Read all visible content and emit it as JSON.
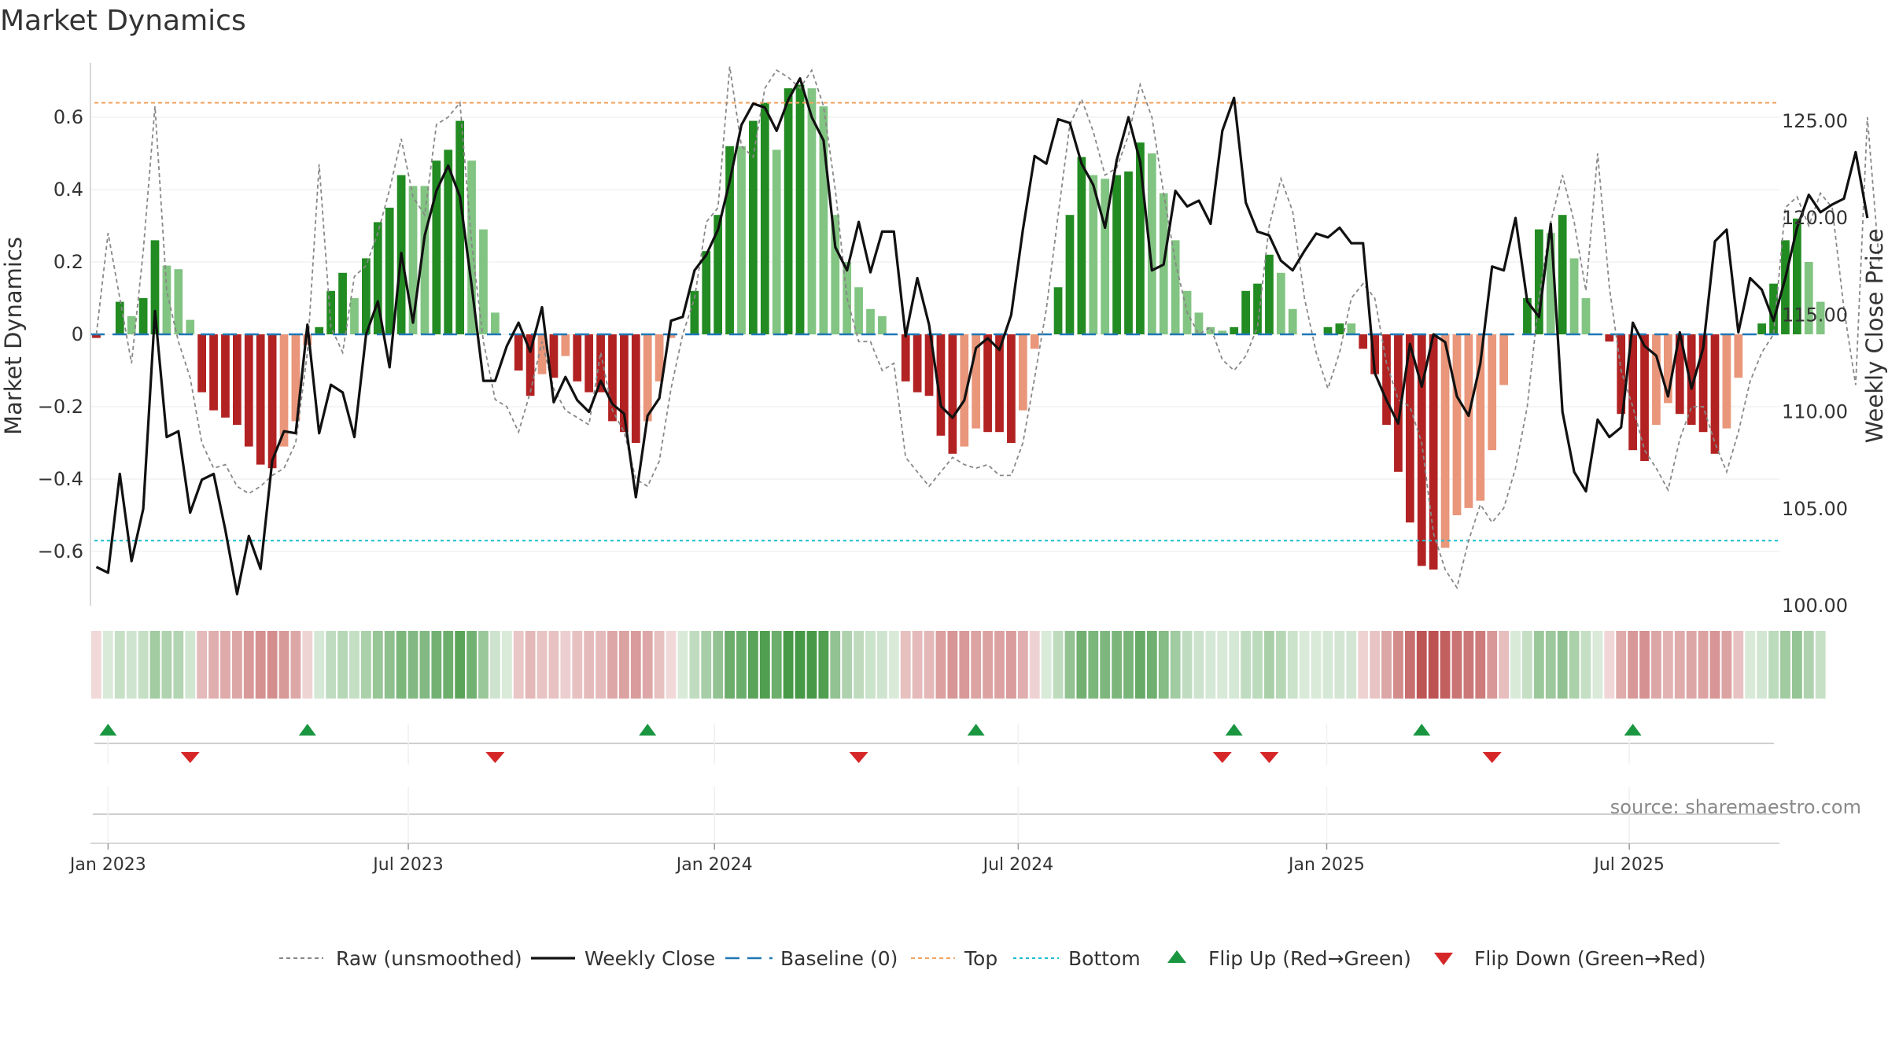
{
  "title": "Market Dynamics",
  "source": "source: sharemaestro.com",
  "colors": {
    "green_dark": "#228b22",
    "green_light": "#82c482",
    "red_dark": "#b22222",
    "red_light": "#e9967a",
    "raw_line": "#888888",
    "close_line": "#111111",
    "baseline": "#1f77b4",
    "top_line": "#f4a460",
    "bottom_line": "#17becf",
    "flip_up": "#1a9641",
    "flip_down": "#d62728"
  },
  "legend": [
    {
      "label": "Raw (unsmoothed)",
      "kind": "dashed-gray"
    },
    {
      "label": "Weekly Close",
      "kind": "solid-black"
    },
    {
      "label": "Baseline (0)",
      "kind": "dashed-blue"
    },
    {
      "label": "Top",
      "kind": "dotted-orange"
    },
    {
      "label": "Bottom",
      "kind": "dotted-cyan"
    },
    {
      "label": "Flip Up (Red→Green)",
      "kind": "triangle-up"
    },
    {
      "label": "Flip Down (Green→Red)",
      "kind": "triangle-down"
    }
  ],
  "chart_data": {
    "type": "bar",
    "title": "Market Dynamics",
    "ylabel_left": "Market Dynamics",
    "ylabel_right": "Weekly Close Price",
    "ylim_left": [
      -0.75,
      0.75
    ],
    "ylim_right": [
      100,
      128
    ],
    "yticks_left": [
      {
        "value": 0.6,
        "label": "0.6"
      },
      {
        "value": 0.4,
        "label": "0.4"
      },
      {
        "value": 0.2,
        "label": "0.2"
      },
      {
        "value": 0,
        "label": "0"
      },
      {
        "value": -0.2,
        "label": "−0.2"
      },
      {
        "value": -0.4,
        "label": "−0.4"
      },
      {
        "value": -0.6,
        "label": "−0.6"
      }
    ],
    "yticks_right": [
      {
        "value": 125,
        "label": "125.00"
      },
      {
        "value": 120,
        "label": "120.00"
      },
      {
        "value": 115,
        "label": "115.00"
      },
      {
        "value": 110,
        "label": "110.00"
      },
      {
        "value": 105,
        "label": "105.00"
      },
      {
        "value": 100,
        "label": "100.00"
      }
    ],
    "xticks": [
      {
        "week": 1,
        "label": "Jan 2023"
      },
      {
        "week": 26.6,
        "label": "Jul 2023"
      },
      {
        "week": 52.7,
        "label": "Jan 2024"
      },
      {
        "week": 78.6,
        "label": "Jul 2024"
      },
      {
        "week": 104.9,
        "label": "Jan 2025"
      },
      {
        "week": 130.7,
        "label": "Jul 2025"
      }
    ],
    "x_range_weeks": [
      -0.5,
      143.5
    ],
    "top_threshold": 0.64,
    "bottom_threshold": -0.57,
    "baseline": 0,
    "smoothed_bars": [
      -0.01,
      0.0,
      0.09,
      0.05,
      0.1,
      0.26,
      0.19,
      0.18,
      0.04,
      -0.16,
      -0.21,
      -0.23,
      -0.25,
      -0.31,
      -0.36,
      -0.37,
      -0.31,
      -0.24,
      -0.03,
      0.02,
      0.12,
      0.17,
      0.1,
      0.21,
      0.31,
      0.35,
      0.44,
      0.41,
      0.41,
      0.48,
      0.51,
      0.59,
      0.48,
      0.29,
      0.06,
      0.0,
      -0.1,
      -0.17,
      -0.11,
      -0.12,
      -0.06,
      -0.13,
      -0.16,
      -0.16,
      -0.24,
      -0.27,
      -0.3,
      -0.24,
      -0.13,
      -0.01,
      0.0,
      0.12,
      0.23,
      0.33,
      0.52,
      0.52,
      0.59,
      0.64,
      0.51,
      0.68,
      0.69,
      0.68,
      0.63,
      0.33,
      0.2,
      0.13,
      0.07,
      0.05,
      0.0,
      -0.13,
      -0.16,
      -0.17,
      -0.28,
      -0.33,
      -0.31,
      -0.26,
      -0.27,
      -0.27,
      -0.3,
      -0.21,
      -0.04,
      0.0,
      0.13,
      0.33,
      0.49,
      0.44,
      0.43,
      0.44,
      0.45,
      0.53,
      0.5,
      0.39,
      0.26,
      0.12,
      0.06,
      0.02,
      0.01,
      0.02,
      0.12,
      0.14,
      0.22,
      0.17,
      0.07,
      0.0,
      0.0,
      0.02,
      0.03,
      0.03,
      -0.04,
      -0.11,
      -0.25,
      -0.38,
      -0.52,
      -0.64,
      -0.65,
      -0.59,
      -0.5,
      -0.48,
      -0.46,
      -0.32,
      -0.14,
      0.0,
      0.1,
      0.29,
      0.28,
      0.33,
      0.21,
      0.1,
      0.0,
      -0.02,
      -0.22,
      -0.32,
      -0.35,
      -0.25,
      -0.19,
      -0.22,
      -0.25,
      -0.27,
      -0.33,
      -0.26,
      -0.12,
      0.0,
      0.03,
      0.14,
      0.26,
      0.32,
      0.2,
      0.09
    ],
    "raw": [
      0.0,
      0.28,
      0.1,
      -0.08,
      0.23,
      0.63,
      0.12,
      -0.02,
      -0.12,
      -0.3,
      -0.37,
      -0.36,
      -0.42,
      -0.44,
      -0.42,
      -0.39,
      -0.37,
      -0.3,
      -0.05,
      0.47,
      0.02,
      -0.05,
      0.16,
      0.19,
      0.28,
      0.4,
      0.54,
      0.38,
      0.33,
      0.58,
      0.6,
      0.64,
      0.25,
      -0.02,
      -0.18,
      -0.2,
      -0.27,
      -0.16,
      -0.02,
      -0.15,
      -0.21,
      -0.23,
      -0.25,
      -0.05,
      -0.21,
      -0.27,
      -0.4,
      -0.42,
      -0.35,
      -0.15,
      0.0,
      0.1,
      0.31,
      0.35,
      0.74,
      0.52,
      0.49,
      0.68,
      0.73,
      0.71,
      0.68,
      0.73,
      0.63,
      0.4,
      0.1,
      -0.02,
      -0.02,
      -0.1,
      -0.08,
      -0.34,
      -0.38,
      -0.42,
      -0.38,
      -0.34,
      -0.36,
      -0.37,
      -0.36,
      -0.39,
      -0.39,
      -0.3,
      -0.12,
      0.07,
      0.33,
      0.58,
      0.65,
      0.56,
      0.44,
      0.46,
      0.55,
      0.69,
      0.6,
      0.39,
      0.2,
      0.06,
      0.0,
      0.02,
      -0.07,
      -0.1,
      -0.06,
      0.02,
      0.3,
      0.43,
      0.34,
      0.1,
      -0.05,
      -0.15,
      -0.05,
      0.1,
      0.14,
      0.1,
      -0.08,
      -0.18,
      -0.2,
      -0.3,
      -0.55,
      -0.65,
      -0.7,
      -0.57,
      -0.47,
      -0.52,
      -0.48,
      -0.37,
      -0.2,
      0.1,
      0.31,
      0.44,
      0.31,
      0.12,
      0.5,
      0.13,
      -0.1,
      -0.2,
      -0.32,
      -0.37,
      -0.43,
      -0.29,
      -0.2,
      -0.2,
      -0.3,
      -0.38,
      -0.27,
      -0.13,
      -0.05,
      0.0,
      0.35,
      0.38,
      0.3,
      0.39,
      0.35,
      0.07,
      -0.14,
      0.6,
      0.2
    ],
    "weekly_close": [
      102.0,
      101.7,
      106.8,
      102.3,
      105.0,
      115.2,
      108.7,
      109.0,
      104.8,
      106.5,
      106.8,
      103.9,
      100.6,
      103.6,
      101.9,
      107.5,
      109.0,
      108.9,
      114.5,
      108.9,
      111.4,
      111.0,
      108.7,
      114.0,
      115.7,
      112.3,
      118.2,
      114.6,
      119.1,
      121.4,
      122.7,
      121.1,
      116.5,
      111.6,
      111.6,
      113.4,
      114.6,
      113.1,
      115.4,
      110.5,
      111.8,
      110.6,
      110.0,
      111.6,
      110.4,
      109.9,
      105.6,
      109.8,
      110.7,
      114.7,
      114.9,
      117.3,
      118.1,
      119.4,
      121.9,
      124.8,
      125.9,
      125.7,
      124.5,
      126.1,
      127.2,
      125.2,
      124.0,
      118.5,
      117.3,
      119.8,
      117.2,
      119.3,
      119.3,
      113.9,
      116.9,
      114.5,
      110.3,
      109.7,
      110.6,
      113.3,
      113.8,
      113.2,
      115.0,
      119.4,
      123.2,
      122.8,
      125.1,
      124.9,
      122.8,
      121.7,
      119.5,
      123.0,
      125.2,
      122.9,
      117.3,
      117.6,
      121.4,
      120.6,
      120.9,
      119.7,
      124.5,
      126.2,
      120.8,
      119.3,
      119.1,
      117.8,
      117.3,
      118.3,
      119.2,
      119.0,
      119.5,
      118.7,
      118.7,
      112.0,
      110.6,
      109.4,
      113.5,
      111.3,
      114.0,
      113.6,
      110.8,
      109.8,
      112.5,
      117.5,
      117.3,
      120.0,
      115.7,
      114.9,
      119.7,
      110.0,
      106.9,
      105.9,
      109.6,
      108.7,
      109.2,
      114.6,
      113.4,
      112.9,
      110.8,
      114.1,
      111.2,
      113.3,
      118.8,
      119.4,
      114.1,
      116.9,
      116.3,
      114.7,
      116.9,
      119.5,
      121.2,
      120.3,
      120.7,
      121.0,
      123.4,
      120.0
    ],
    "flip_up_weeks": [
      1,
      18,
      47,
      75,
      97,
      113,
      131
    ],
    "flip_down_weeks": [
      8,
      34,
      65,
      96,
      100,
      119
    ]
  }
}
